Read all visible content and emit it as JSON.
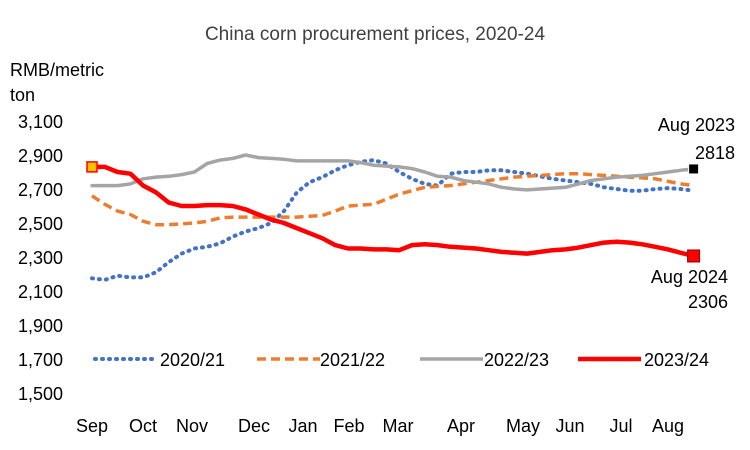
{
  "chart_data": {
    "type": "line",
    "title": "China corn procurement prices, 2020-24",
    "ylabel_line1": "RMB/metric",
    "ylabel_line2": "ton",
    "ylim": [
      1500,
      3100
    ],
    "yticks": [
      1500,
      1700,
      1900,
      2100,
      2300,
      2500,
      2700,
      2900,
      3100
    ],
    "ytick_labels": [
      "1,500",
      "1,700",
      "1,900",
      "2,100",
      "2,300",
      "2,500",
      "2,700",
      "2,900",
      "3,100"
    ],
    "month_labels": [
      "Sep",
      "Oct",
      "Nov",
      "Dec",
      "Jan",
      "Feb",
      "Mar",
      "Apr",
      "May",
      "Jun",
      "Jul",
      "Aug"
    ],
    "x_range": [
      0,
      12
    ],
    "month_positions": [
      0,
      1,
      2,
      3,
      4,
      5,
      6,
      7,
      8,
      9,
      10,
      11
    ],
    "grid": false,
    "legend_position": "bottom",
    "series": [
      {
        "name": "2020/21",
        "color": "#4472C4",
        "style": "dotted",
        "x": [
          0,
          0.25,
          0.5,
          0.75,
          1,
          1.25,
          1.5,
          1.75,
          2,
          2.25,
          2.5,
          2.75,
          3,
          3.25,
          3.5,
          3.75,
          4,
          4.25,
          4.5,
          4.75,
          5,
          5.25,
          5.5,
          5.75,
          6,
          6.25,
          6.5,
          6.75,
          7,
          7.25,
          7.5,
          7.75,
          8,
          8.25,
          8.5,
          8.75,
          9,
          9.25,
          9.5,
          9.75,
          10,
          10.25,
          10.5,
          10.75,
          11,
          11.25,
          11.5,
          11.75
        ],
        "values": [
          2175,
          2165,
          2190,
          2180,
          2180,
          2210,
          2270,
          2320,
          2350,
          2360,
          2380,
          2420,
          2450,
          2470,
          2500,
          2570,
          2680,
          2740,
          2770,
          2810,
          2840,
          2860,
          2870,
          2850,
          2800,
          2760,
          2730,
          2720,
          2790,
          2800,
          2800,
          2810,
          2810,
          2800,
          2790,
          2775,
          2760,
          2750,
          2740,
          2730,
          2710,
          2700,
          2690,
          2690,
          2700,
          2705,
          2700,
          2690
        ]
      },
      {
        "name": "2021/22",
        "color": "#ED7D31",
        "style": "dashed",
        "x": [
          0,
          0.25,
          0.5,
          0.75,
          1,
          1.25,
          1.5,
          1.75,
          2,
          2.25,
          2.5,
          2.75,
          3,
          3.25,
          3.5,
          3.75,
          4,
          4.25,
          4.5,
          4.75,
          5,
          5.25,
          5.5,
          5.75,
          6,
          6.25,
          6.5,
          6.75,
          7,
          7.25,
          7.5,
          7.75,
          8,
          8.25,
          8.5,
          8.75,
          9,
          9.25,
          9.5,
          9.75,
          10,
          10.25,
          10.5,
          10.75,
          11,
          11.25,
          11.5,
          11.75
        ],
        "values": [
          2660,
          2610,
          2570,
          2550,
          2510,
          2490,
          2490,
          2495,
          2500,
          2510,
          2530,
          2535,
          2535,
          2535,
          2535,
          2535,
          2535,
          2540,
          2545,
          2570,
          2600,
          2605,
          2610,
          2640,
          2670,
          2690,
          2710,
          2715,
          2720,
          2730,
          2740,
          2750,
          2760,
          2770,
          2775,
          2780,
          2785,
          2790,
          2790,
          2785,
          2780,
          2775,
          2770,
          2765,
          2760,
          2745,
          2730,
          2720
        ]
      },
      {
        "name": "2022/23",
        "color": "#A5A5A5",
        "style": "solid",
        "x": [
          0,
          0.25,
          0.5,
          0.75,
          1,
          1.25,
          1.5,
          1.75,
          2,
          2.25,
          2.5,
          2.75,
          3,
          3.25,
          3.5,
          3.75,
          4,
          4.25,
          4.5,
          4.75,
          5,
          5.25,
          5.5,
          5.75,
          6,
          6.25,
          6.5,
          6.75,
          7,
          7.25,
          7.5,
          7.75,
          8,
          8.25,
          8.5,
          8.75,
          9,
          9.25,
          9.5,
          9.75,
          10,
          10.25,
          10.5,
          10.75,
          11,
          11.25,
          11.5,
          11.75
        ],
        "values": [
          2720,
          2720,
          2720,
          2730,
          2760,
          2770,
          2775,
          2785,
          2800,
          2850,
          2870,
          2880,
          2900,
          2885,
          2880,
          2875,
          2865,
          2865,
          2865,
          2865,
          2865,
          2855,
          2840,
          2835,
          2830,
          2820,
          2800,
          2775,
          2770,
          2750,
          2740,
          2730,
          2710,
          2700,
          2695,
          2700,
          2705,
          2710,
          2730,
          2750,
          2760,
          2770,
          2775,
          2780,
          2790,
          2800,
          2810,
          2818
        ]
      },
      {
        "name": "2023/24",
        "color": "#FF0000",
        "style": "solid",
        "x": [
          0,
          0.25,
          0.5,
          0.75,
          1,
          1.25,
          1.5,
          1.75,
          2,
          2.25,
          2.5,
          2.75,
          3,
          3.25,
          3.5,
          3.75,
          4,
          4.25,
          4.5,
          4.75,
          5,
          5.25,
          5.5,
          5.75,
          6,
          6.25,
          6.5,
          6.75,
          7,
          7.25,
          7.5,
          7.75,
          8,
          8.25,
          8.5,
          8.75,
          9,
          9.25,
          9.5,
          9.75,
          10,
          10.25,
          10.5,
          10.75,
          11,
          11.25,
          11.5,
          11.75
        ],
        "values": [
          2830,
          2830,
          2800,
          2790,
          2720,
          2680,
          2620,
          2600,
          2600,
          2605,
          2605,
          2600,
          2580,
          2550,
          2520,
          2500,
          2470,
          2440,
          2410,
          2370,
          2350,
          2350,
          2345,
          2345,
          2340,
          2370,
          2375,
          2370,
          2360,
          2355,
          2350,
          2340,
          2330,
          2325,
          2320,
          2330,
          2340,
          2345,
          2355,
          2370,
          2385,
          2390,
          2385,
          2375,
          2360,
          2345,
          2325,
          2306
        ]
      }
    ],
    "annotations": [
      {
        "line1": "Aug 2023",
        "line2": "2818"
      },
      {
        "line1": "Aug 2024",
        "line2": "2306"
      }
    ]
  }
}
